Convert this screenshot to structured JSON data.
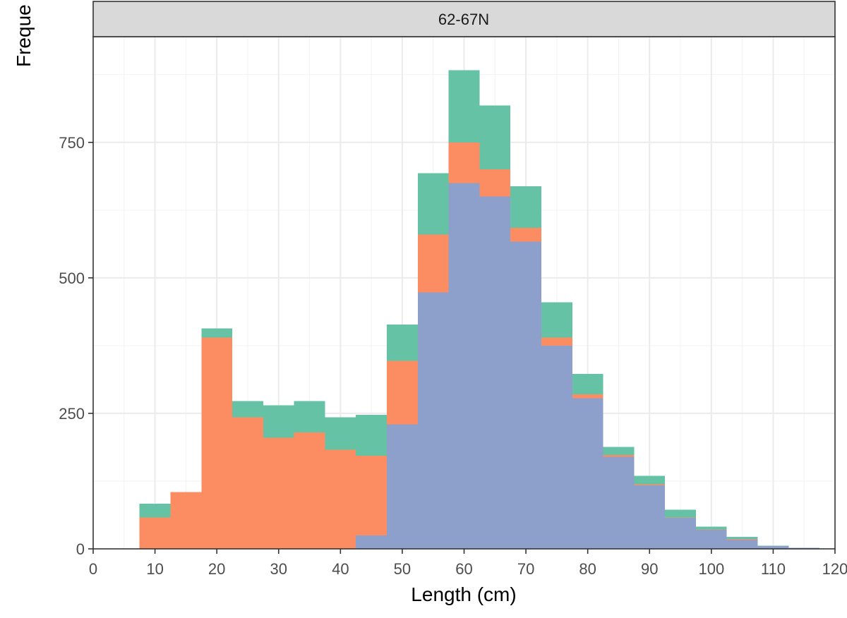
{
  "chart_data": {
    "type": "bar",
    "stacked": true,
    "facet_label": "62-67N",
    "xlabel": "Length (cm)",
    "ylabel": "Freque",
    "xlim": [
      0,
      120
    ],
    "ylim": [
      0,
      945
    ],
    "x_ticks": [
      0,
      10,
      20,
      30,
      40,
      50,
      60,
      70,
      80,
      90,
      100,
      110,
      120
    ],
    "y_ticks": [
      0,
      250,
      500,
      750
    ],
    "bin_width": 5,
    "bin_centers": [
      10,
      15,
      20,
      25,
      30,
      35,
      40,
      45,
      50,
      55,
      60,
      65,
      70,
      75,
      80,
      85,
      90,
      95,
      100,
      105,
      110,
      115
    ],
    "series": [
      {
        "color": "#8DA0CB",
        "values": [
          0,
          0,
          0,
          0,
          0,
          0,
          0,
          25,
          230,
          473,
          675,
          650,
          567,
          375,
          278,
          170,
          117,
          57,
          35,
          17,
          5,
          2
        ]
      },
      {
        "color": "#FC8D62",
        "values": [
          58,
          105,
          390,
          243,
          205,
          215,
          183,
          147,
          117,
          107,
          75,
          50,
          25,
          15,
          7,
          3,
          2,
          1,
          1,
          1,
          0,
          0
        ]
      },
      {
        "color": "#66C2A5",
        "values": [
          25,
          0,
          17,
          30,
          60,
          58,
          60,
          75,
          67,
          113,
          133,
          118,
          77,
          65,
          38,
          15,
          16,
          14,
          5,
          4,
          1,
          0
        ]
      }
    ],
    "grid": true
  }
}
